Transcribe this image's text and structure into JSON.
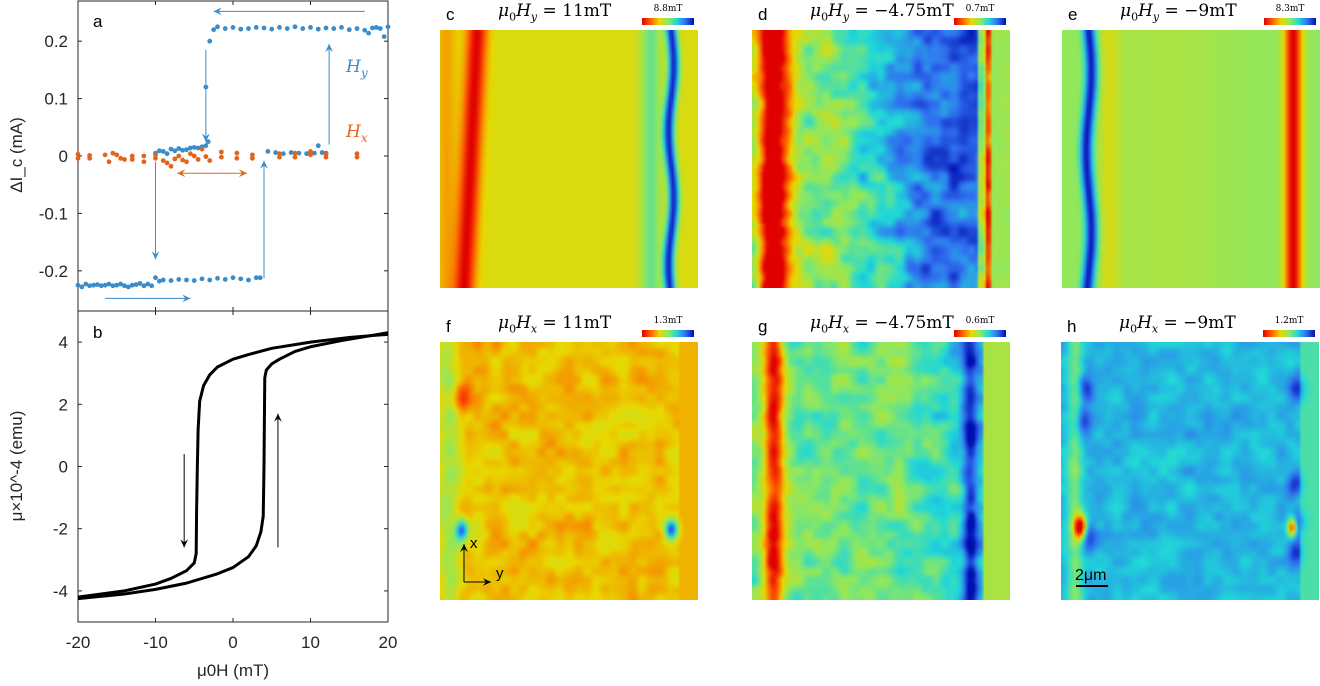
{
  "chart_data": [
    {
      "panel": "a",
      "type": "scatter",
      "ylabel": "ΔI_c (mA)",
      "xlim": [
        -20,
        20
      ],
      "ylim": [
        -0.27,
        0.27
      ],
      "xticks": [
        "-20",
        "-10",
        "0",
        "10",
        "20"
      ],
      "yticks": [
        "-0.2",
        "-0.1",
        "0",
        "0.1",
        "0.2"
      ],
      "colors": {
        "Hy": "#3a8ccb",
        "Hx": "#e2651c"
      },
      "series": [
        {
          "name": "H_y",
          "label_main": "H",
          "label_sub": "y",
          "color": "#3a8ccb",
          "x": [
            -20,
            -19.5,
            -19,
            -18.5,
            -18,
            -17.5,
            -17,
            -16.5,
            -16,
            -15.5,
            -15,
            -14.5,
            -14,
            -13.5,
            -13,
            -12.5,
            -12,
            -11.5,
            -11,
            -10.5,
            -10,
            -9.5,
            -9,
            -8,
            -7,
            -6,
            -5,
            -4,
            -3,
            -2,
            -1,
            0,
            1,
            2,
            3,
            3.5,
            4.5,
            5.5,
            6.5,
            7.5,
            8.5,
            9.5,
            10,
            10.5,
            11,
            11.5,
            12,
            -3,
            -2.5,
            -2,
            -1,
            0,
            1,
            2,
            3,
            4,
            5,
            6,
            7,
            8,
            9,
            10,
            11,
            12,
            13,
            14,
            15,
            16,
            17,
            17.5,
            18,
            18.5,
            19,
            19.5,
            20,
            -10,
            -9.5,
            -9,
            -8.5,
            -8,
            -7.5,
            -7,
            -6.5,
            -6,
            -5.5,
            -5,
            -4.5,
            -4,
            -3.5,
            -3.5,
            -3.2
          ],
          "y": [
            -0.225,
            -0.228,
            -0.223,
            -0.226,
            -0.225,
            -0.224,
            -0.226,
            -0.225,
            -0.223,
            -0.226,
            -0.225,
            -0.223,
            -0.226,
            -0.228,
            -0.225,
            -0.224,
            -0.222,
            -0.226,
            -0.223,
            -0.226,
            -0.212,
            -0.218,
            -0.216,
            -0.217,
            -0.215,
            -0.216,
            -0.217,
            -0.214,
            -0.216,
            -0.213,
            -0.215,
            -0.212,
            -0.214,
            -0.216,
            -0.212,
            -0.212,
            0.008,
            0.006,
            0.004,
            0.006,
            0.005,
            0.004,
            0.006,
            0.005,
            0.018,
            0.006,
            0.005,
            0.2,
            0.22,
            0.225,
            0.222,
            0.224,
            0.221,
            0.222,
            0.224,
            0.223,
            0.221,
            0.224,
            0.222,
            0.225,
            0.222,
            0.224,
            0.221,
            0.223,
            0.222,
            0.224,
            0.22,
            0.222,
            0.219,
            0.214,
            0.223,
            0.224,
            0.222,
            0.208,
            0.225,
            0.005,
            0.009,
            0.008,
            0.004,
            0.012,
            0.009,
            0.013,
            0.01,
            0.011,
            0.014,
            0.015,
            0.014,
            0.016,
            0.018,
            0.12,
            0.025
          ]
        },
        {
          "name": "H_x",
          "label_main": "H",
          "label_sub": "x",
          "color": "#e2651c",
          "x": [
            -20,
            -20,
            -18.5,
            -18.5,
            -16.5,
            -16,
            -15.5,
            -15,
            -14.5,
            -14,
            -13,
            -13,
            -11.5,
            -11.5,
            -10,
            -10,
            -9,
            -8.5,
            -8,
            -7.5,
            -7,
            -6.5,
            -6,
            -5.5,
            -5,
            -4.5,
            -4,
            -3.5,
            -3,
            -1.5,
            -1.5,
            0.5,
            0.5,
            2.5,
            2.5,
            6,
            6,
            8,
            8,
            10,
            10,
            12,
            12,
            16,
            16
          ],
          "y": [
            0.003,
            -0.004,
            0.001,
            -0.004,
            0.002,
            -0.01,
            0.005,
            0.002,
            -0.004,
            -0.006,
            0,
            -0.006,
            0,
            -0.01,
            0.002,
            -0.004,
            -0.008,
            -0.012,
            -0.018,
            -0.005,
            0,
            -0.007,
            -0.01,
            0.004,
            0,
            -0.006,
            0.012,
            -0.001,
            -0.008,
            0.007,
            -0.002,
            0.005,
            -0.004,
            0.002,
            -0.004,
            0.004,
            -0.002,
            0.005,
            -0.002,
            0.008,
            0.002,
            0.003,
            -0.002,
            0.004,
            -0.002
          ]
        }
      ]
    },
    {
      "panel": "b",
      "type": "line",
      "xlabel": "μ0H (mT)",
      "ylabel": "μ×10^-4 (emu)",
      "xlim": [
        -20,
        20
      ],
      "ylim": [
        -5,
        5
      ],
      "xticks": [
        "-20",
        "-10",
        "0",
        "10",
        "20"
      ],
      "yticks": [
        "-4",
        "-2",
        "0",
        "2",
        "4"
      ],
      "series": [
        {
          "name": "descending",
          "x": [
            20,
            15,
            10,
            5,
            2,
            0,
            -2,
            -3,
            -3.8,
            -4.3,
            -4.5,
            -4.6,
            -4.7,
            -4.75,
            -5,
            -6,
            -8,
            -10,
            -14,
            -20
          ],
          "y": [
            4.25,
            4.15,
            4.0,
            3.8,
            3.6,
            3.45,
            3.2,
            2.95,
            2.6,
            2.1,
            1.2,
            0,
            -1.5,
            -2.8,
            -3.1,
            -3.35,
            -3.6,
            -3.78,
            -4.0,
            -4.2
          ]
        },
        {
          "name": "ascending",
          "x": [
            -20,
            -14,
            -10,
            -6,
            -2,
            0,
            2,
            3,
            3.6,
            3.9,
            4.0,
            4.05,
            4.1,
            4.3,
            5,
            6,
            8,
            10,
            14,
            20
          ],
          "y": [
            -4.25,
            -4.1,
            -3.95,
            -3.75,
            -3.45,
            -3.25,
            -2.9,
            -2.55,
            -2.1,
            -1.6,
            0,
            1.5,
            2.85,
            3.1,
            3.3,
            3.45,
            3.7,
            3.85,
            4.05,
            4.3
          ]
        }
      ]
    }
  ],
  "panels": {
    "a": {
      "letter": "a"
    },
    "b": {
      "letter": "b"
    },
    "c": {
      "letter": "c",
      "field": "y",
      "value": "= 11mT",
      "cbar": "8.8mT"
    },
    "d": {
      "letter": "d",
      "field": "y",
      "value": "= −4.75mT",
      "cbar": "0.7mT"
    },
    "e": {
      "letter": "e",
      "field": "y",
      "value": "= −9mT",
      "cbar": "8.3mT"
    },
    "f": {
      "letter": "f",
      "field": "x",
      "value": "= 11mT",
      "cbar": "1.3mT"
    },
    "g": {
      "letter": "g",
      "field": "x",
      "value": "= −4.75mT",
      "cbar": "0.6mT"
    },
    "h": {
      "letter": "h",
      "field": "x",
      "value": "= −9mT",
      "cbar": "1.2mT"
    }
  },
  "title_parts": {
    "mu": "μ",
    "zero": "0",
    "H": "H"
  },
  "axes_indicator": {
    "x": "x",
    "y": "y"
  },
  "scale_bar": "2μm",
  "colormap": [
    "#e00000",
    "#ff6000",
    "#e8d800",
    "#8ee860",
    "#20d8d8",
    "#3070f0",
    "#0010b0"
  ]
}
